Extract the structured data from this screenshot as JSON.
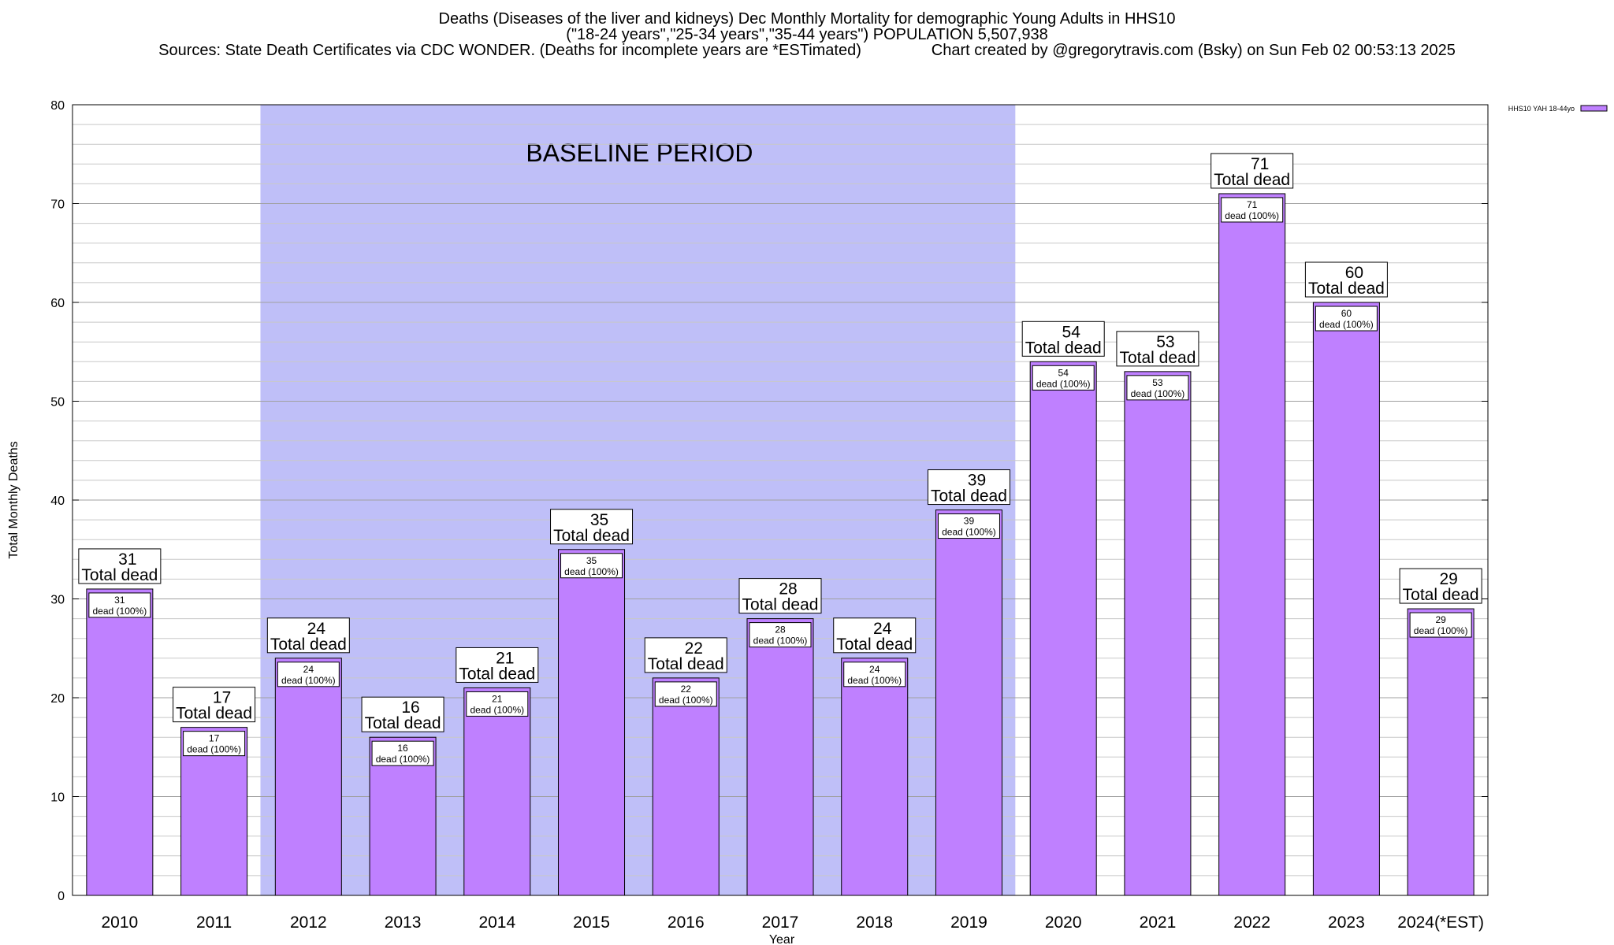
{
  "chart_data": {
    "type": "bar",
    "title_lines": [
      "Deaths (Diseases of the liver and kidneys) Dec Monthly Mortality for demographic Young Adults in HHS10",
      "(\"18-24 years\",\"25-34 years\",\"35-44 years\") POPULATION 5,507,938",
      "Sources: State Death Certificates via CDC WONDER. (Deaths for incomplete years are *ESTimated)                Chart created by @gregorytravis.com (Bsky) on Sun Feb 02 00:53:13 2025"
    ],
    "xlabel": "Year",
    "ylabel": "Total Monthly Deaths",
    "ylim": [
      0,
      80
    ],
    "yticks": [
      0,
      10,
      20,
      30,
      40,
      50,
      60,
      70,
      80
    ],
    "categories": [
      "2010",
      "2011",
      "2012",
      "2013",
      "2014",
      "2015",
      "2016",
      "2017",
      "2018",
      "2019",
      "2020",
      "2021",
      "2022",
      "2023",
      "2024(*EST)"
    ],
    "series": [
      {
        "name": "HHS10 YAH 18-44yo",
        "values": [
          31,
          17,
          24,
          16,
          21,
          35,
          22,
          28,
          24,
          39,
          54,
          53,
          71,
          60,
          29
        ],
        "color": "#bf80ff"
      }
    ],
    "label_total_text": "Total dead",
    "label_inner_text": "dead (100%)",
    "baseline_region": {
      "label": "BASELINE PERIOD",
      "from": "2012",
      "to": "2019",
      "color": "#bfbff8"
    },
    "legend": {
      "position": "top-right",
      "label": "HHS10 YAH 18-44yo"
    },
    "grid": true
  }
}
